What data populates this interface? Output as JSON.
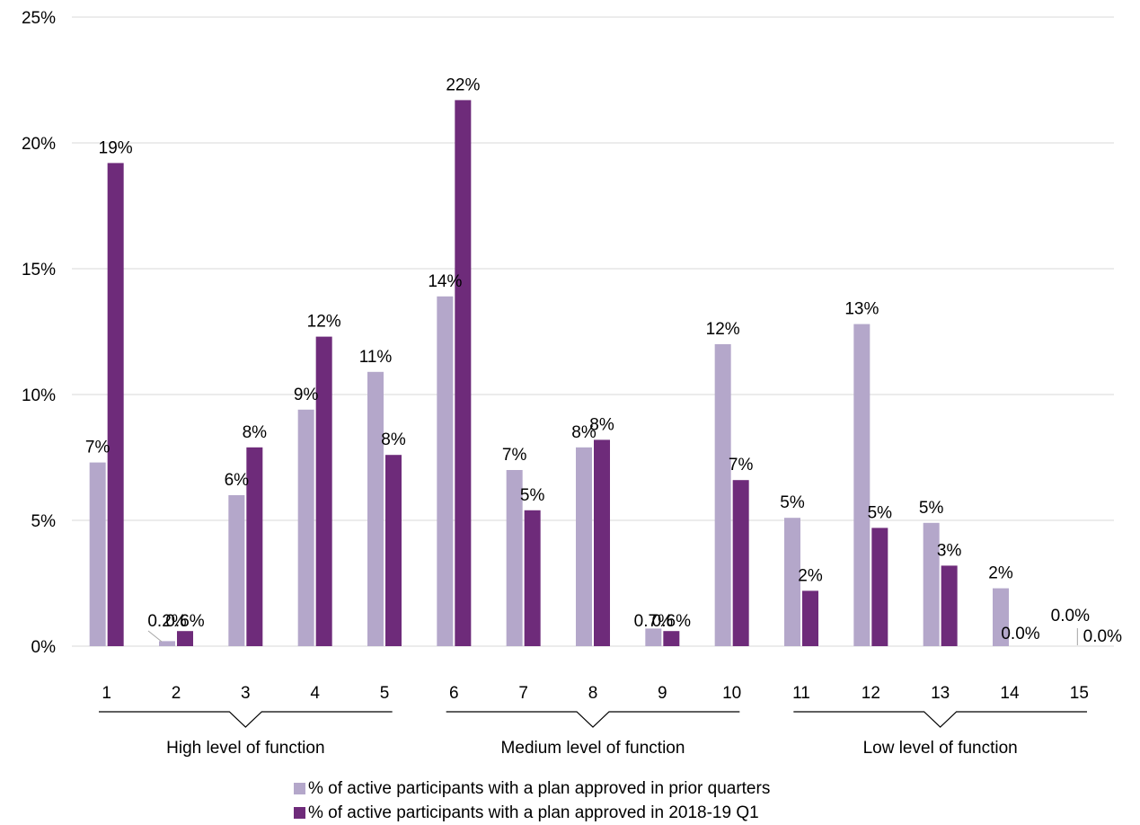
{
  "chart_data": {
    "type": "bar",
    "categories": [
      "1",
      "2",
      "3",
      "4",
      "5",
      "6",
      "7",
      "8",
      "9",
      "10",
      "11",
      "12",
      "13",
      "14",
      "15"
    ],
    "series": [
      {
        "name": "% of active participants with a plan approved in prior quarters",
        "color": "#b4a7ca",
        "values": [
          7.3,
          0.2,
          6.0,
          9.4,
          10.9,
          13.9,
          7.0,
          7.9,
          0.7,
          12.0,
          5.1,
          12.8,
          4.9,
          2.3,
          0.0
        ],
        "labels": [
          "7%",
          "0.2%",
          "6%",
          "9%",
          "11%",
          "14%",
          "7%",
          "8%",
          "0.7%",
          "12%",
          "5%",
          "13%",
          "5%",
          "2%",
          "0.0%"
        ]
      },
      {
        "name": "% of active participants with a plan approved in 2018-19 Q1",
        "color": "#6e2b7a",
        "values": [
          19.2,
          0.6,
          7.9,
          12.3,
          7.6,
          21.7,
          5.4,
          8.2,
          0.6,
          6.6,
          2.2,
          4.7,
          3.2,
          0.0,
          0.0
        ],
        "labels": [
          "19%",
          "0.6%",
          "8%",
          "12%",
          "8%",
          "22%",
          "5%",
          "8%",
          "0.6%",
          "7%",
          "2%",
          "5%",
          "3%",
          "0.0%",
          "0.0%"
        ]
      }
    ],
    "ylim": [
      0,
      25
    ],
    "yticks": [
      "0%",
      "5%",
      "10%",
      "15%",
      "20%",
      "25%"
    ],
    "grid": true,
    "groups": [
      {
        "label": "High level of function",
        "from": 1,
        "to": 5
      },
      {
        "label": "Medium level of function",
        "from": 6,
        "to": 10
      },
      {
        "label": "Low level of function",
        "from": 11,
        "to": 15
      }
    ],
    "legend_position": "bottom",
    "title": "",
    "xlabel": "",
    "ylabel": ""
  }
}
